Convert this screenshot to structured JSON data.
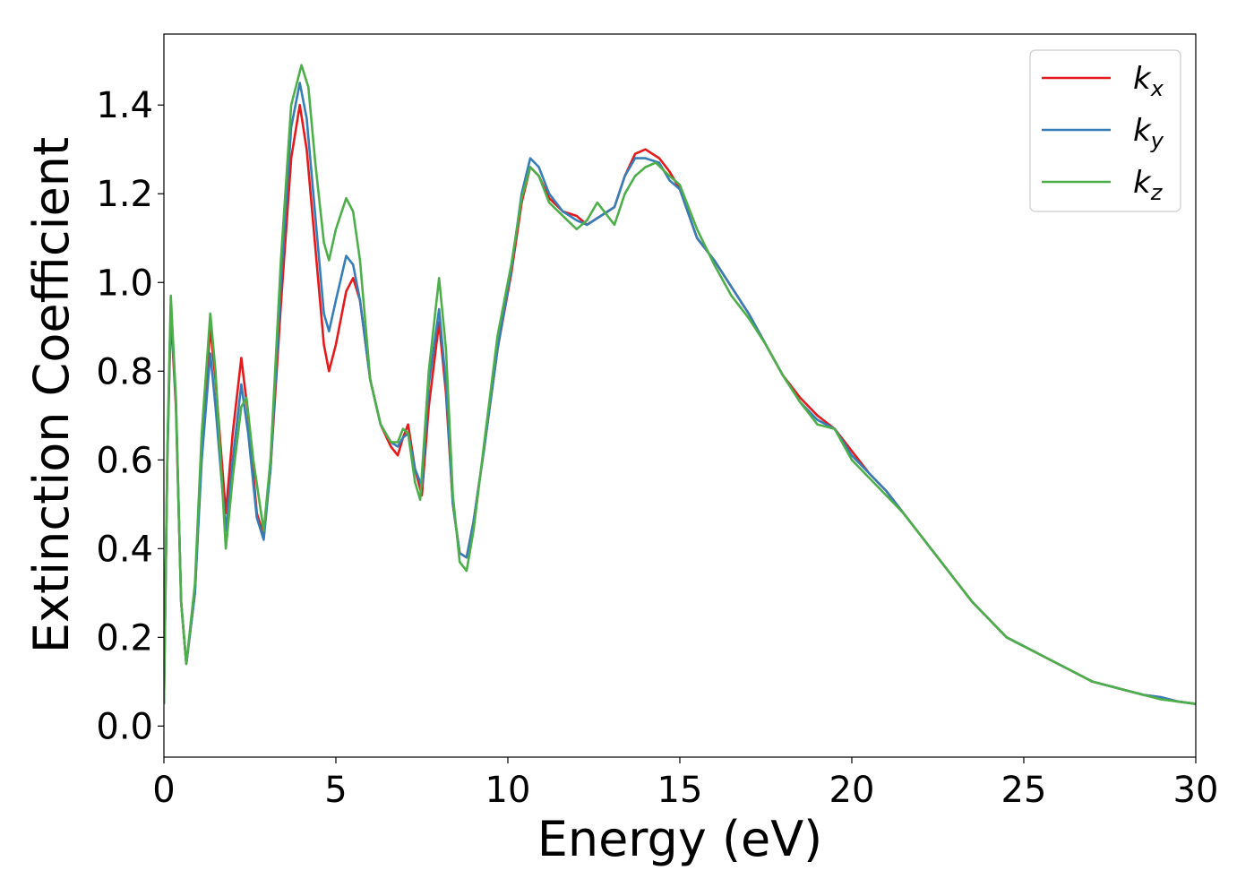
{
  "chart_data": {
    "type": "line",
    "xlabel": "Energy (eV)",
    "ylabel": "Extinction Coefficient",
    "xlim": [
      0,
      30
    ],
    "ylim": [
      -0.07,
      1.56
    ],
    "xticks": [
      0,
      5,
      10,
      15,
      20,
      25,
      30
    ],
    "xtick_labels": [
      "0",
      "5",
      "10",
      "15",
      "20",
      "25",
      "30"
    ],
    "yticks": [
      0.0,
      0.2,
      0.4,
      0.6,
      0.8,
      1.0,
      1.2,
      1.4
    ],
    "ytick_labels": [
      "0.0",
      "0.2",
      "0.4",
      "0.6",
      "0.8",
      "1.0",
      "1.2",
      "1.4"
    ],
    "grid": false,
    "legend_position": "top-right",
    "series": [
      {
        "name": "k",
        "subscript": "x",
        "color": "#e41a1c",
        "points": [
          [
            0,
            0.05
          ],
          [
            0.1,
            0.6
          ],
          [
            0.2,
            0.93
          ],
          [
            0.35,
            0.72
          ],
          [
            0.5,
            0.28
          ],
          [
            0.65,
            0.14
          ],
          [
            0.9,
            0.3
          ],
          [
            1.1,
            0.62
          ],
          [
            1.35,
            0.9
          ],
          [
            1.5,
            0.78
          ],
          [
            1.8,
            0.48
          ],
          [
            2.0,
            0.66
          ],
          [
            2.25,
            0.83
          ],
          [
            2.45,
            0.7
          ],
          [
            2.7,
            0.48
          ],
          [
            2.9,
            0.43
          ],
          [
            3.1,
            0.58
          ],
          [
            3.4,
            0.95
          ],
          [
            3.7,
            1.28
          ],
          [
            3.95,
            1.4
          ],
          [
            4.15,
            1.3
          ],
          [
            4.4,
            1.08
          ],
          [
            4.65,
            0.86
          ],
          [
            4.8,
            0.8
          ],
          [
            5.0,
            0.86
          ],
          [
            5.3,
            0.98
          ],
          [
            5.5,
            1.01
          ],
          [
            5.7,
            0.96
          ],
          [
            6.0,
            0.78
          ],
          [
            6.3,
            0.68
          ],
          [
            6.6,
            0.63
          ],
          [
            6.8,
            0.61
          ],
          [
            6.95,
            0.65
          ],
          [
            7.1,
            0.68
          ],
          [
            7.3,
            0.58
          ],
          [
            7.5,
            0.52
          ],
          [
            7.7,
            0.72
          ],
          [
            8.0,
            0.91
          ],
          [
            8.2,
            0.75
          ],
          [
            8.4,
            0.5
          ],
          [
            8.6,
            0.39
          ],
          [
            8.8,
            0.38
          ],
          [
            9.0,
            0.46
          ],
          [
            9.3,
            0.62
          ],
          [
            9.7,
            0.85
          ],
          [
            10.1,
            1.02
          ],
          [
            10.4,
            1.18
          ],
          [
            10.65,
            1.26
          ],
          [
            10.9,
            1.24
          ],
          [
            11.2,
            1.19
          ],
          [
            11.6,
            1.16
          ],
          [
            12.0,
            1.15
          ],
          [
            12.3,
            1.13
          ],
          [
            12.7,
            1.15
          ],
          [
            13.1,
            1.17
          ],
          [
            13.4,
            1.24
          ],
          [
            13.7,
            1.29
          ],
          [
            14.0,
            1.3
          ],
          [
            14.4,
            1.28
          ],
          [
            14.7,
            1.25
          ],
          [
            15.0,
            1.21
          ],
          [
            15.5,
            1.1
          ],
          [
            16.0,
            1.05
          ],
          [
            16.5,
            0.99
          ],
          [
            17.0,
            0.93
          ],
          [
            17.5,
            0.86
          ],
          [
            18.0,
            0.79
          ],
          [
            18.5,
            0.74
          ],
          [
            19.0,
            0.7
          ],
          [
            19.5,
            0.67
          ],
          [
            20.0,
            0.62
          ],
          [
            20.5,
            0.57
          ],
          [
            21.0,
            0.53
          ],
          [
            21.5,
            0.48
          ],
          [
            22.0,
            0.43
          ],
          [
            22.5,
            0.38
          ],
          [
            23.0,
            0.33
          ],
          [
            23.5,
            0.28
          ],
          [
            24.0,
            0.24
          ],
          [
            24.5,
            0.2
          ],
          [
            25.0,
            0.18
          ],
          [
            25.5,
            0.16
          ],
          [
            26.0,
            0.14
          ],
          [
            26.5,
            0.12
          ],
          [
            27.0,
            0.1
          ],
          [
            27.5,
            0.09
          ],
          [
            28.0,
            0.08
          ],
          [
            28.5,
            0.07
          ],
          [
            29.0,
            0.065
          ],
          [
            29.5,
            0.055
          ],
          [
            30.0,
            0.05
          ]
        ]
      },
      {
        "name": "k",
        "subscript": "y",
        "color": "#377eb8",
        "points": [
          [
            0,
            0.05
          ],
          [
            0.1,
            0.6
          ],
          [
            0.2,
            0.95
          ],
          [
            0.35,
            0.73
          ],
          [
            0.5,
            0.28
          ],
          [
            0.65,
            0.14
          ],
          [
            0.9,
            0.3
          ],
          [
            1.1,
            0.6
          ],
          [
            1.35,
            0.84
          ],
          [
            1.5,
            0.72
          ],
          [
            1.8,
            0.44
          ],
          [
            2.0,
            0.6
          ],
          [
            2.25,
            0.77
          ],
          [
            2.45,
            0.66
          ],
          [
            2.7,
            0.47
          ],
          [
            2.9,
            0.42
          ],
          [
            3.1,
            0.58
          ],
          [
            3.4,
            1.0
          ],
          [
            3.7,
            1.35
          ],
          [
            3.95,
            1.45
          ],
          [
            4.15,
            1.37
          ],
          [
            4.4,
            1.15
          ],
          [
            4.65,
            0.93
          ],
          [
            4.8,
            0.89
          ],
          [
            5.0,
            0.96
          ],
          [
            5.3,
            1.06
          ],
          [
            5.5,
            1.04
          ],
          [
            5.7,
            0.96
          ],
          [
            6.0,
            0.78
          ],
          [
            6.3,
            0.68
          ],
          [
            6.6,
            0.64
          ],
          [
            6.8,
            0.63
          ],
          [
            6.95,
            0.65
          ],
          [
            7.1,
            0.66
          ],
          [
            7.3,
            0.58
          ],
          [
            7.5,
            0.54
          ],
          [
            7.7,
            0.77
          ],
          [
            8.0,
            0.94
          ],
          [
            8.2,
            0.77
          ],
          [
            8.4,
            0.5
          ],
          [
            8.6,
            0.39
          ],
          [
            8.8,
            0.38
          ],
          [
            9.0,
            0.46
          ],
          [
            9.3,
            0.62
          ],
          [
            9.7,
            0.85
          ],
          [
            10.1,
            1.03
          ],
          [
            10.4,
            1.2
          ],
          [
            10.65,
            1.28
          ],
          [
            10.9,
            1.26
          ],
          [
            11.2,
            1.2
          ],
          [
            11.6,
            1.16
          ],
          [
            12.0,
            1.14
          ],
          [
            12.3,
            1.13
          ],
          [
            12.7,
            1.15
          ],
          [
            13.1,
            1.17
          ],
          [
            13.4,
            1.24
          ],
          [
            13.7,
            1.28
          ],
          [
            14.0,
            1.28
          ],
          [
            14.4,
            1.27
          ],
          [
            14.7,
            1.23
          ],
          [
            15.0,
            1.21
          ],
          [
            15.5,
            1.1
          ],
          [
            16.0,
            1.05
          ],
          [
            16.5,
            0.99
          ],
          [
            17.0,
            0.93
          ],
          [
            17.5,
            0.86
          ],
          [
            18.0,
            0.79
          ],
          [
            18.5,
            0.73
          ],
          [
            19.0,
            0.69
          ],
          [
            19.5,
            0.67
          ],
          [
            20.0,
            0.61
          ],
          [
            20.5,
            0.57
          ],
          [
            21.0,
            0.53
          ],
          [
            21.5,
            0.48
          ],
          [
            22.0,
            0.43
          ],
          [
            22.5,
            0.38
          ],
          [
            23.0,
            0.33
          ],
          [
            23.5,
            0.28
          ],
          [
            24.0,
            0.24
          ],
          [
            24.5,
            0.2
          ],
          [
            25.0,
            0.18
          ],
          [
            25.5,
            0.16
          ],
          [
            26.0,
            0.14
          ],
          [
            26.5,
            0.12
          ],
          [
            27.0,
            0.1
          ],
          [
            27.5,
            0.09
          ],
          [
            28.0,
            0.08
          ],
          [
            28.5,
            0.07
          ],
          [
            29.0,
            0.065
          ],
          [
            29.5,
            0.055
          ],
          [
            30.0,
            0.05
          ]
        ]
      },
      {
        "name": "k",
        "subscript": "z",
        "color": "#4daf4a",
        "points": [
          [
            0,
            0.05
          ],
          [
            0.1,
            0.62
          ],
          [
            0.2,
            0.97
          ],
          [
            0.35,
            0.74
          ],
          [
            0.5,
            0.28
          ],
          [
            0.65,
            0.14
          ],
          [
            0.9,
            0.32
          ],
          [
            1.1,
            0.66
          ],
          [
            1.35,
            0.93
          ],
          [
            1.5,
            0.8
          ],
          [
            1.8,
            0.4
          ],
          [
            2.0,
            0.56
          ],
          [
            2.25,
            0.72
          ],
          [
            2.4,
            0.74
          ],
          [
            2.6,
            0.6
          ],
          [
            2.9,
            0.44
          ],
          [
            3.1,
            0.6
          ],
          [
            3.4,
            1.05
          ],
          [
            3.7,
            1.4
          ],
          [
            4.0,
            1.49
          ],
          [
            4.2,
            1.44
          ],
          [
            4.4,
            1.27
          ],
          [
            4.65,
            1.09
          ],
          [
            4.8,
            1.05
          ],
          [
            5.0,
            1.12
          ],
          [
            5.3,
            1.19
          ],
          [
            5.5,
            1.16
          ],
          [
            5.7,
            1.05
          ],
          [
            6.0,
            0.78
          ],
          [
            6.3,
            0.68
          ],
          [
            6.6,
            0.64
          ],
          [
            6.8,
            0.64
          ],
          [
            6.95,
            0.67
          ],
          [
            7.1,
            0.66
          ],
          [
            7.3,
            0.55
          ],
          [
            7.45,
            0.51
          ],
          [
            7.7,
            0.8
          ],
          [
            8.0,
            1.01
          ],
          [
            8.2,
            0.85
          ],
          [
            8.4,
            0.52
          ],
          [
            8.6,
            0.37
          ],
          [
            8.8,
            0.35
          ],
          [
            9.0,
            0.44
          ],
          [
            9.3,
            0.63
          ],
          [
            9.7,
            0.88
          ],
          [
            10.1,
            1.04
          ],
          [
            10.4,
            1.19
          ],
          [
            10.65,
            1.26
          ],
          [
            10.9,
            1.24
          ],
          [
            11.2,
            1.18
          ],
          [
            11.6,
            1.15
          ],
          [
            12.0,
            1.12
          ],
          [
            12.3,
            1.14
          ],
          [
            12.6,
            1.18
          ],
          [
            12.8,
            1.16
          ],
          [
            13.1,
            1.13
          ],
          [
            13.4,
            1.2
          ],
          [
            13.7,
            1.24
          ],
          [
            14.0,
            1.26
          ],
          [
            14.3,
            1.27
          ],
          [
            14.7,
            1.24
          ],
          [
            15.0,
            1.22
          ],
          [
            15.5,
            1.12
          ],
          [
            16.0,
            1.04
          ],
          [
            16.5,
            0.97
          ],
          [
            17.0,
            0.92
          ],
          [
            17.5,
            0.86
          ],
          [
            18.0,
            0.79
          ],
          [
            18.5,
            0.73
          ],
          [
            19.0,
            0.68
          ],
          [
            19.5,
            0.67
          ],
          [
            20.0,
            0.6
          ],
          [
            20.5,
            0.56
          ],
          [
            21.0,
            0.52
          ],
          [
            21.5,
            0.48
          ],
          [
            22.0,
            0.43
          ],
          [
            22.5,
            0.38
          ],
          [
            23.0,
            0.33
          ],
          [
            23.5,
            0.28
          ],
          [
            24.0,
            0.24
          ],
          [
            24.5,
            0.2
          ],
          [
            25.0,
            0.18
          ],
          [
            25.5,
            0.16
          ],
          [
            26.0,
            0.14
          ],
          [
            26.5,
            0.12
          ],
          [
            27.0,
            0.1
          ],
          [
            27.5,
            0.09
          ],
          [
            28.0,
            0.08
          ],
          [
            28.5,
            0.07
          ],
          [
            29.0,
            0.06
          ],
          [
            29.5,
            0.055
          ],
          [
            30.0,
            0.05
          ]
        ]
      }
    ]
  }
}
